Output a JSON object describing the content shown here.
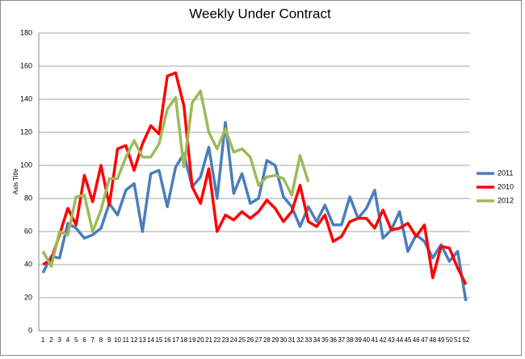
{
  "chart_data": {
    "type": "line",
    "title": "Weekly Under Contract",
    "y_label": "Axis Title",
    "categories": [
      "1",
      "2",
      "3",
      "4",
      "5",
      "6",
      "7",
      "8",
      "9",
      "10",
      "11",
      "12",
      "13",
      "14",
      "15",
      "16",
      "17",
      "18",
      "19",
      "20",
      "21",
      "22",
      "23",
      "24",
      "25",
      "26",
      "27",
      "28",
      "29",
      "30",
      "31",
      "32",
      "33",
      "34",
      "35",
      "36",
      "37",
      "38",
      "39",
      "40",
      "41",
      "42",
      "43",
      "44",
      "45",
      "46",
      "47",
      "48",
      "49",
      "50",
      "51",
      "52"
    ],
    "series": [
      {
        "name": "2011",
        "color": "#4a7ebb",
        "values": [
          35,
          45,
          44,
          65,
          62,
          56,
          58,
          62,
          77,
          70,
          85,
          89,
          60,
          95,
          97,
          75,
          99,
          107,
          87,
          93,
          111,
          80,
          126,
          83,
          95,
          77,
          80,
          103,
          100,
          81,
          75,
          63,
          75,
          66,
          76,
          64,
          64,
          81,
          68,
          74,
          85,
          56,
          61,
          72,
          48,
          58,
          54,
          44,
          52,
          42,
          48,
          18
        ]
      },
      {
        "name": "2010",
        "color": "#ff0000",
        "values": [
          40,
          43,
          58,
          74,
          64,
          94,
          78,
          100,
          76,
          110,
          112,
          97,
          113,
          124,
          119,
          154,
          156,
          136,
          87,
          77,
          98,
          60,
          70,
          67,
          72,
          68,
          72,
          79,
          74,
          66,
          72,
          88,
          66,
          63,
          70,
          54,
          57,
          66,
          68,
          68,
          62,
          73,
          61,
          62,
          65,
          57,
          64,
          32,
          51,
          50,
          38,
          28
        ]
      },
      {
        "name": "2012",
        "color": "#9bbb59",
        "values": [
          48,
          39,
          60,
          58,
          81,
          82,
          60,
          73,
          92,
          92,
          105,
          115,
          105,
          105,
          113,
          134,
          141,
          99,
          138,
          145,
          120,
          110,
          122,
          108,
          110,
          105,
          88,
          93,
          94,
          92,
          82,
          106,
          90,
          null,
          null,
          null,
          null,
          null,
          null,
          null,
          null,
          null,
          null,
          null,
          null,
          null,
          null,
          null,
          null,
          null,
          null,
          null
        ]
      }
    ],
    "ylim": [
      0,
      180
    ],
    "yticks": [
      0,
      20,
      40,
      60,
      80,
      100,
      120,
      140,
      160,
      180
    ],
    "grid": true,
    "legend": "right"
  }
}
